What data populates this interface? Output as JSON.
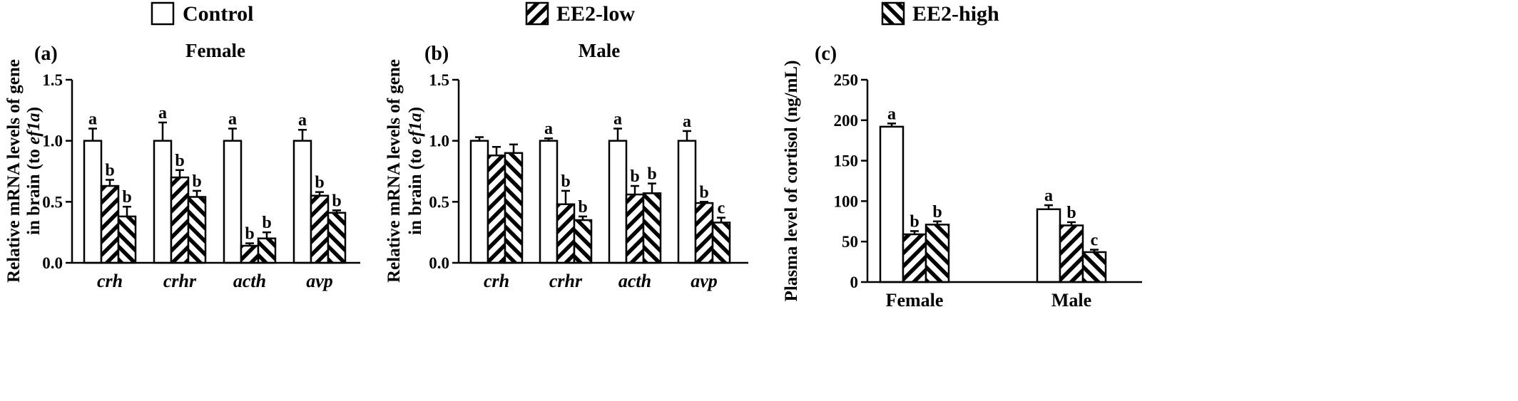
{
  "legend": [
    {
      "label": "Control",
      "pattern": "white"
    },
    {
      "label": "EE2-low",
      "pattern": "hatch-right"
    },
    {
      "label": "EE2-high",
      "pattern": "hatch-left"
    }
  ],
  "colors": {
    "fill": "#ffffff",
    "stroke": "#000000"
  },
  "chart_data": [
    {
      "panel": "(a)",
      "type": "bar",
      "title": "Female",
      "ylabel_line1": "Relative mRNA levels of gene",
      "ylabel_line2_prefix": "in brain  (to ",
      "ylabel_line2_italic": "ef1a",
      "ylabel_line2_suffix": ")",
      "ylim": [
        0,
        1.5
      ],
      "yticks": [
        "0.0",
        "0.5",
        "1.0",
        "1.5"
      ],
      "ytick_values": [
        0,
        0.5,
        1.0,
        1.5
      ],
      "categories": [
        "crh",
        "crhr",
        "acth",
        "avp"
      ],
      "italic_categories": true,
      "series": [
        {
          "name": "Control",
          "values": [
            1.0,
            1.0,
            1.0,
            1.0
          ],
          "errors": [
            0.1,
            0.15,
            0.1,
            0.09
          ],
          "letters": [
            "a",
            "a",
            "a",
            "a"
          ]
        },
        {
          "name": "EE2-low",
          "values": [
            0.63,
            0.7,
            0.14,
            0.55
          ],
          "errors": [
            0.05,
            0.06,
            0.02,
            0.03
          ],
          "letters": [
            "b",
            "b",
            "b",
            "b"
          ]
        },
        {
          "name": "EE2-high",
          "values": [
            0.38,
            0.54,
            0.2,
            0.41
          ],
          "errors": [
            0.08,
            0.05,
            0.05,
            0.02
          ],
          "letters": [
            "b",
            "b",
            "b",
            "b"
          ]
        }
      ]
    },
    {
      "panel": "(b)",
      "type": "bar",
      "title": "Male",
      "ylabel_line1": "Relative mRNA levels of gene",
      "ylabel_line2_prefix": "in brain  (to ",
      "ylabel_line2_italic": "ef1a",
      "ylabel_line2_suffix": ")",
      "ylim": [
        0,
        1.5
      ],
      "yticks": [
        "0.0",
        "0.5",
        "1.0",
        "1.5"
      ],
      "ytick_values": [
        0,
        0.5,
        1.0,
        1.5
      ],
      "categories": [
        "crh",
        "crhr",
        "acth",
        "avp"
      ],
      "italic_categories": true,
      "series": [
        {
          "name": "Control",
          "values": [
            1.0,
            1.0,
            1.0,
            1.0
          ],
          "errors": [
            0.03,
            0.02,
            0.1,
            0.08
          ],
          "letters": [
            "",
            "a",
            "a",
            "a"
          ]
        },
        {
          "name": "EE2-low",
          "values": [
            0.88,
            0.48,
            0.56,
            0.49
          ],
          "errors": [
            0.07,
            0.11,
            0.07,
            0.01
          ],
          "letters": [
            "",
            "b",
            "b",
            "b"
          ]
        },
        {
          "name": "EE2-high",
          "values": [
            0.9,
            0.35,
            0.57,
            0.33
          ],
          "errors": [
            0.07,
            0.03,
            0.08,
            0.04
          ],
          "letters": [
            "",
            "b",
            "b",
            "c"
          ]
        }
      ]
    },
    {
      "panel": "(c)",
      "type": "bar",
      "title": "",
      "ylabel_line1": "Plasma level of cortisol (ng/mL)",
      "ylim": [
        0,
        250
      ],
      "yticks": [
        "0",
        "50",
        "100",
        "150",
        "200",
        "250"
      ],
      "ytick_values": [
        0,
        50,
        100,
        150,
        200,
        250
      ],
      "categories": [
        "Female",
        "Male"
      ],
      "italic_categories": false,
      "series": [
        {
          "name": "Control",
          "values": [
            192,
            90
          ],
          "errors": [
            4,
            5
          ],
          "letters": [
            "a",
            "a"
          ]
        },
        {
          "name": "EE2-low",
          "values": [
            59,
            70
          ],
          "errors": [
            4,
            4
          ],
          "letters": [
            "b",
            "b"
          ]
        },
        {
          "name": "EE2-high",
          "values": [
            71,
            37
          ],
          "errors": [
            4,
            3
          ],
          "letters": [
            "b",
            "c"
          ]
        }
      ]
    }
  ]
}
